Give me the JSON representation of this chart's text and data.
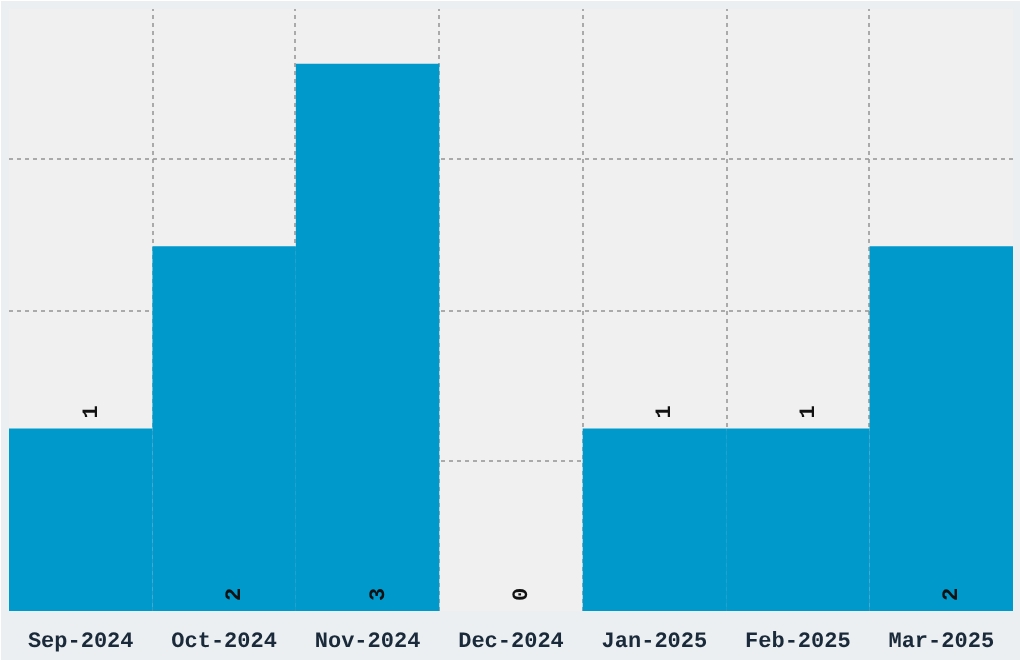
{
  "chart_data": {
    "type": "bar",
    "categories": [
      "Sep-2024",
      "Oct-2024",
      "Nov-2024",
      "Dec-2024",
      "Jan-2025",
      "Feb-2025",
      "Mar-2025"
    ],
    "values": [
      1,
      2,
      3,
      0,
      1,
      1,
      2
    ],
    "color": "#0099cc",
    "ylim": [
      0,
      3.3
    ],
    "yticks": [
      {
        "value": 0,
        "label": null
      },
      {
        "value": 0.825,
        "label": null
      },
      {
        "value": 1.65,
        "label": null
      },
      {
        "value": 2.475,
        "label": null
      },
      {
        "value": 3.3,
        "label": null
      }
    ],
    "tick_labels": "x",
    "grid": true,
    "data_labels": true
  }
}
